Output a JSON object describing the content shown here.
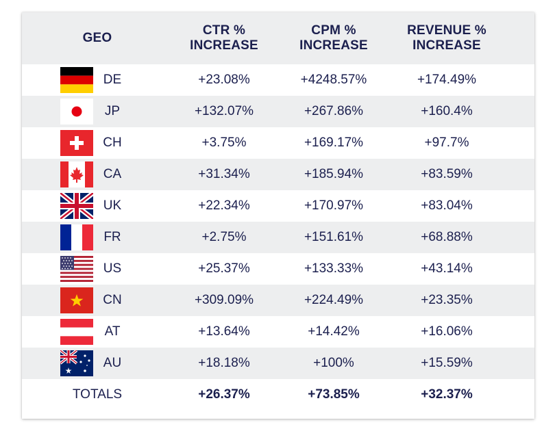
{
  "table": {
    "headers": {
      "geo": "GEO",
      "ctr_line1": "CTR %",
      "ctr_line2": "INCREASE",
      "cpm_line1": "CPM %",
      "cpm_line2": "INCREASE",
      "rev_line1": "REVENUE %",
      "rev_line2": "INCREASE"
    },
    "rows": [
      {
        "flag": "germany-flag-icon",
        "geo": "DE",
        "ctr": "+23.08%",
        "cpm": "+4248.57%",
        "revenue": "+174.49%"
      },
      {
        "flag": "japan-flag-icon",
        "geo": "JP",
        "ctr": "+132.07%",
        "cpm": "+267.86%",
        "revenue": "+160.4%"
      },
      {
        "flag": "switzerland-flag-icon",
        "geo": "CH",
        "ctr": "+3.75%",
        "cpm": "+169.17%",
        "revenue": "+97.7%"
      },
      {
        "flag": "canada-flag-icon",
        "geo": "CA",
        "ctr": "+31.34%",
        "cpm": "+185.94%",
        "revenue": "+83.59%"
      },
      {
        "flag": "uk-flag-icon",
        "geo": "UK",
        "ctr": "+22.34%",
        "cpm": "+170.97%",
        "revenue": "+83.04%"
      },
      {
        "flag": "france-flag-icon",
        "geo": "FR",
        "ctr": "+2.75%",
        "cpm": "+151.61%",
        "revenue": "+68.88%"
      },
      {
        "flag": "usa-flag-icon",
        "geo": "US",
        "ctr": "+25.37%",
        "cpm": "+133.33%",
        "revenue": "+43.14%"
      },
      {
        "flag": "vietnam-flag-icon",
        "geo": "CN",
        "ctr": "+309.09%",
        "cpm": "+224.49%",
        "revenue": "+23.35%"
      },
      {
        "flag": "austria-flag-icon",
        "geo": "AT",
        "ctr": "+13.64%",
        "cpm": "+14.42%",
        "revenue": "+16.06%"
      },
      {
        "flag": "australia-flag-icon",
        "geo": "AU",
        "ctr": "+18.18%",
        "cpm": "+100%",
        "revenue": "+15.59%"
      }
    ],
    "totals": {
      "label": "TOTALS",
      "ctr": "+26.37%",
      "cpm": "+73.85%",
      "revenue": "+32.37%"
    }
  },
  "colors": {
    "text": "#1b1f4e",
    "stripe": "#edeeef"
  }
}
